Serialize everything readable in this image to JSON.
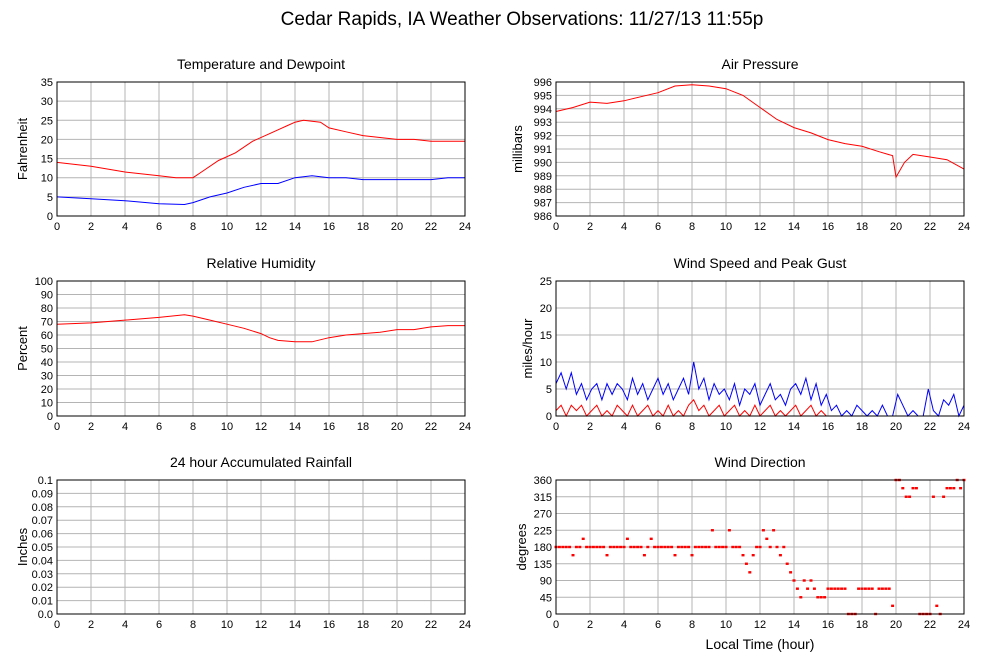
{
  "page": {
    "title": "Cedar Rapids, IA Weather Observations: 11/27/13 11:55p",
    "xlabel": "Local Time (hour)"
  },
  "colors": {
    "red": "#ff0000",
    "blue": "#0000ff",
    "grid": "#b4b4b4"
  },
  "chart_data": [
    {
      "id": "temp",
      "type": "line",
      "title": "Temperature and Dewpoint",
      "ylabel": "Fahrenheit",
      "xlim": [
        0,
        24
      ],
      "ylim": [
        0,
        35
      ],
      "xticks": [
        0,
        2,
        4,
        6,
        8,
        10,
        12,
        14,
        16,
        18,
        20,
        22,
        24
      ],
      "yticks": [
        0,
        5,
        10,
        15,
        20,
        25,
        30,
        35
      ],
      "grid": true,
      "series": [
        {
          "color": "#ff0000",
          "x": [
            0,
            2,
            4,
            6,
            7,
            8,
            8.5,
            9.5,
            10.5,
            11.5,
            12.5,
            13.5,
            14,
            14.5,
            15.5,
            16,
            17,
            18,
            19,
            20,
            21,
            22,
            23,
            24
          ],
          "y": [
            14,
            13,
            11.5,
            10.5,
            10,
            10,
            11.5,
            14.5,
            16.5,
            19.5,
            21.5,
            23.5,
            24.5,
            25,
            24.5,
            23,
            22,
            21,
            20.5,
            20,
            20,
            19.5,
            19.5,
            19.5
          ]
        },
        {
          "color": "#0000ff",
          "x": [
            0,
            2,
            4,
            6,
            7.5,
            8,
            9,
            10,
            11,
            12,
            13,
            14,
            15,
            16,
            17,
            18,
            19,
            20,
            21,
            22,
            23,
            24
          ],
          "y": [
            5,
            4.5,
            4,
            3.2,
            3,
            3.5,
            5,
            6,
            7.5,
            8.5,
            8.5,
            10,
            10.5,
            10,
            10,
            9.5,
            9.5,
            9.5,
            9.5,
            9.5,
            10,
            10
          ]
        }
      ]
    },
    {
      "id": "press",
      "type": "line",
      "title": "Air Pressure",
      "ylabel": "millibars",
      "xlim": [
        0,
        24
      ],
      "ylim": [
        986,
        996
      ],
      "xticks": [
        0,
        2,
        4,
        6,
        8,
        10,
        12,
        14,
        16,
        18,
        20,
        22,
        24
      ],
      "yticks": [
        986,
        987,
        988,
        989,
        990,
        991,
        992,
        993,
        994,
        995,
        996
      ],
      "grid": true,
      "series": [
        {
          "color": "#ff0000",
          "x": [
            0,
            1,
            2,
            3,
            4,
            5,
            6,
            7,
            8,
            9,
            10,
            11,
            12,
            13,
            14,
            15,
            16,
            17,
            18,
            19,
            19.8,
            20,
            20.5,
            21,
            22,
            23,
            24
          ],
          "y": [
            993.8,
            994.1,
            994.5,
            994.4,
            994.6,
            994.9,
            995.2,
            995.7,
            995.8,
            995.7,
            995.5,
            995.0,
            994.1,
            993.2,
            992.6,
            992.2,
            991.7,
            991.4,
            991.2,
            990.8,
            990.5,
            988.9,
            990.0,
            990.6,
            990.4,
            990.2,
            989.5
          ]
        }
      ]
    },
    {
      "id": "rh",
      "type": "line",
      "title": "Relative Humidity",
      "ylabel": "Percent",
      "xlim": [
        0,
        24
      ],
      "ylim": [
        0,
        100
      ],
      "xticks": [
        0,
        2,
        4,
        6,
        8,
        10,
        12,
        14,
        16,
        18,
        20,
        22,
        24
      ],
      "yticks": [
        0,
        10,
        20,
        30,
        40,
        50,
        60,
        70,
        80,
        90,
        100
      ],
      "grid": true,
      "series": [
        {
          "color": "#ff0000",
          "x": [
            0,
            2,
            4,
            6,
            7.5,
            8,
            9,
            10,
            11,
            12,
            12.5,
            13,
            14,
            15,
            16,
            17,
            18,
            19,
            20,
            21,
            22,
            23,
            24
          ],
          "y": [
            68,
            69,
            71,
            73,
            75,
            74,
            71,
            68,
            65,
            61,
            58,
            56,
            55,
            55,
            58,
            60,
            61,
            62,
            64,
            64,
            66,
            67,
            67
          ]
        }
      ]
    },
    {
      "id": "wind",
      "type": "line",
      "title": "Wind Speed and Peak Gust",
      "ylabel": "miles/hour",
      "xlim": [
        0,
        24
      ],
      "ylim": [
        0,
        25
      ],
      "xticks": [
        0,
        2,
        4,
        6,
        8,
        10,
        12,
        14,
        16,
        18,
        20,
        22,
        24
      ],
      "yticks": [
        0,
        5,
        10,
        15,
        20,
        25
      ],
      "grid": true,
      "series": [
        {
          "color": "#0000ff",
          "x": [
            0,
            0.3,
            0.6,
            0.9,
            1.2,
            1.5,
            1.8,
            2.1,
            2.4,
            2.7,
            3.0,
            3.3,
            3.6,
            3.9,
            4.2,
            4.5,
            4.8,
            5.1,
            5.4,
            5.7,
            6.0,
            6.3,
            6.6,
            6.9,
            7.2,
            7.5,
            7.8,
            8.1,
            8.4,
            8.7,
            9.0,
            9.3,
            9.6,
            9.9,
            10.2,
            10.5,
            10.8,
            11.1,
            11.4,
            11.7,
            12.0,
            12.3,
            12.6,
            12.9,
            13.2,
            13.5,
            13.8,
            14.1,
            14.4,
            14.7,
            15.0,
            15.3,
            15.6,
            15.9,
            16.2,
            16.5,
            16.8,
            17.1,
            17.4,
            17.7,
            18.0,
            18.3,
            18.6,
            18.9,
            19.2,
            19.5,
            19.8,
            20.1,
            20.4,
            20.7,
            21.0,
            21.3,
            21.6,
            21.9,
            22.2,
            22.5,
            22.8,
            23.1,
            23.4,
            23.7,
            24.0
          ],
          "y": [
            6,
            8,
            5,
            8,
            4,
            6,
            3,
            5,
            6,
            3,
            6,
            4,
            6,
            5,
            3,
            7,
            4,
            6,
            3,
            5,
            7,
            4,
            6,
            3,
            5,
            7,
            4,
            10,
            5,
            7,
            3,
            6,
            4,
            5,
            3,
            6,
            2,
            5,
            4,
            6,
            2,
            4,
            6,
            3,
            4,
            2,
            5,
            6,
            4,
            7,
            3,
            6,
            2,
            4,
            1,
            2,
            0,
            1,
            0,
            2,
            1,
            0,
            1,
            0,
            2,
            0,
            0,
            4,
            2,
            0,
            1,
            0,
            0,
            5,
            1,
            0,
            3,
            2,
            4,
            0,
            2
          ]
        },
        {
          "color": "#ff0000",
          "x": [
            0,
            0.3,
            0.6,
            0.9,
            1.2,
            1.5,
            1.8,
            2.1,
            2.4,
            2.7,
            3.0,
            3.3,
            3.6,
            3.9,
            4.2,
            4.5,
            4.8,
            5.1,
            5.4,
            5.7,
            6.0,
            6.3,
            6.6,
            6.9,
            7.2,
            7.5,
            7.8,
            8.1,
            8.4,
            8.7,
            9.0,
            9.3,
            9.6,
            9.9,
            10.2,
            10.5,
            10.8,
            11.1,
            11.4,
            11.7,
            12.0,
            12.3,
            12.6,
            12.9,
            13.2,
            13.5,
            13.8,
            14.1,
            14.4,
            14.7,
            15.0,
            15.3,
            15.6,
            15.9,
            16.2,
            16.5,
            16.8,
            17.1,
            17.4,
            17.7,
            18.0,
            18.3,
            18.6,
            18.9,
            19.2,
            19.5,
            19.8,
            20.1,
            20.4,
            20.7,
            21.0,
            21.3,
            21.6,
            21.9,
            22.2,
            22.5,
            22.8,
            23.1,
            23.4,
            23.7,
            24.0
          ],
          "y": [
            1,
            2,
            0,
            2,
            1,
            2,
            0,
            1,
            2,
            0,
            1,
            0,
            2,
            1,
            0,
            2,
            0,
            1,
            2,
            0,
            1,
            0,
            2,
            0,
            1,
            0,
            2,
            3,
            1,
            2,
            0,
            1,
            2,
            0,
            1,
            2,
            0,
            1,
            0,
            2,
            0,
            1,
            2,
            0,
            1,
            0,
            1,
            2,
            0,
            1,
            2,
            0,
            1,
            0,
            0,
            0,
            0,
            0,
            0,
            0,
            0,
            0,
            0,
            0,
            0,
            0,
            0,
            0,
            0,
            0,
            0,
            0,
            0,
            0,
            0,
            0,
            0,
            0,
            0,
            0,
            0
          ]
        }
      ]
    },
    {
      "id": "rain",
      "type": "line",
      "title": "24 hour Accumulated Rainfall",
      "ylabel": "Inches",
      "xlim": [
        0,
        24
      ],
      "ylim": [
        0,
        0.1
      ],
      "xticks": [
        0,
        2,
        4,
        6,
        8,
        10,
        12,
        14,
        16,
        18,
        20,
        22,
        24
      ],
      "yticks": [
        "0.0",
        "0.01",
        "0.02",
        "0.03",
        "0.04",
        "0.05",
        "0.06",
        "0.07",
        "0.08",
        "0.09",
        "0.1"
      ],
      "grid": true,
      "series": [
        {
          "color": "#ff0000",
          "x": [
            0,
            24
          ],
          "y": [
            0,
            0
          ]
        }
      ]
    },
    {
      "id": "dir",
      "type": "scatter",
      "title": "Wind Direction",
      "ylabel": "degrees",
      "xlim": [
        0,
        24
      ],
      "ylim": [
        0,
        360
      ],
      "xticks": [
        0,
        2,
        4,
        6,
        8,
        10,
        12,
        14,
        16,
        18,
        20,
        22,
        24
      ],
      "yticks": [
        0,
        45,
        90,
        135,
        180,
        225,
        270,
        315,
        360
      ],
      "grid": true,
      "series": [
        {
          "color": "#ff0000",
          "x": [
            0.0,
            0.2,
            0.4,
            0.6,
            0.8,
            1.0,
            1.2,
            1.4,
            1.6,
            1.8,
            2.0,
            2.2,
            2.4,
            2.6,
            2.8,
            3.0,
            3.2,
            3.4,
            3.6,
            3.8,
            4.0,
            4.2,
            4.4,
            4.6,
            4.8,
            5.0,
            5.2,
            5.4,
            5.6,
            5.8,
            6.0,
            6.2,
            6.4,
            6.6,
            6.8,
            7.0,
            7.2,
            7.4,
            7.6,
            7.8,
            8.0,
            8.2,
            8.4,
            8.6,
            8.8,
            9.0,
            9.2,
            9.4,
            9.6,
            9.8,
            10.0,
            10.2,
            10.4,
            10.6,
            10.8,
            11.0,
            11.2,
            11.4,
            11.6,
            11.8,
            12.0,
            12.2,
            12.4,
            12.6,
            12.8,
            13.0,
            13.2,
            13.4,
            13.6,
            13.8,
            14.0,
            14.2,
            14.4,
            14.6,
            14.8,
            15.0,
            15.2,
            15.4,
            15.6,
            15.8,
            16.0,
            16.2,
            16.4,
            16.6,
            16.8,
            17.0,
            17.2,
            17.4,
            17.6,
            17.8,
            18.0,
            18.2,
            18.4,
            18.6,
            18.8,
            19.0,
            19.2,
            19.4,
            19.6,
            19.8,
            20.0,
            20.2,
            20.4,
            20.6,
            20.8,
            21.0,
            21.2,
            21.4,
            21.6,
            21.8,
            22.0,
            22.2,
            22.4,
            22.6,
            22.8,
            23.0,
            23.2,
            23.4,
            23.6,
            23.8,
            24.0
          ],
          "y": [
            180,
            180,
            180,
            180,
            180,
            158,
            180,
            180,
            202,
            180,
            180,
            180,
            180,
            180,
            180,
            158,
            180,
            180,
            180,
            180,
            180,
            202,
            180,
            180,
            180,
            180,
            158,
            180,
            202,
            180,
            180,
            180,
            180,
            180,
            180,
            158,
            180,
            180,
            180,
            180,
            158,
            180,
            180,
            180,
            180,
            180,
            225,
            180,
            180,
            180,
            180,
            225,
            180,
            180,
            180,
            158,
            135,
            112,
            158,
            180,
            180,
            225,
            202,
            180,
            225,
            180,
            158,
            180,
            135,
            112,
            90,
            68,
            45,
            90,
            68,
            90,
            68,
            45,
            45,
            45,
            68,
            68,
            68,
            68,
            68,
            68,
            0,
            0,
            0,
            68,
            68,
            68,
            68,
            68,
            0,
            68,
            68,
            68,
            68,
            22,
            360,
            360,
            338,
            315,
            315,
            338,
            338,
            0,
            0,
            0,
            0,
            315,
            22,
            0,
            315,
            338,
            338,
            338,
            360,
            338,
            360
          ]
        }
      ]
    }
  ]
}
